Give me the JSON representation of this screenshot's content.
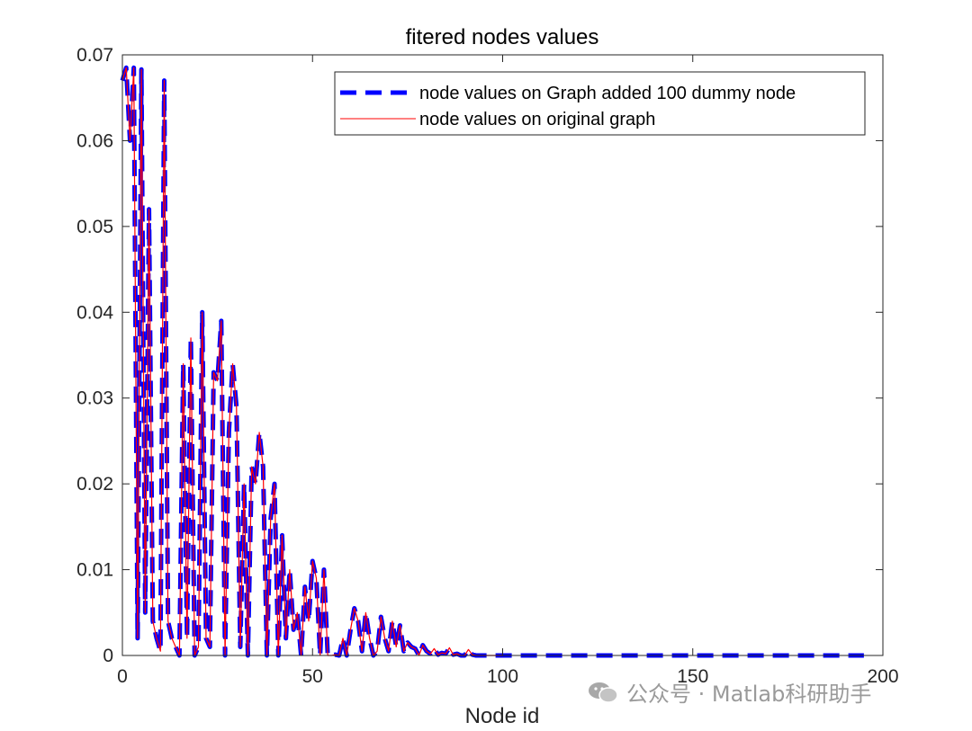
{
  "chart_data": {
    "type": "line",
    "title": "fitered nodes values",
    "xlabel": "Node id",
    "ylabel": "",
    "xlim": [
      0,
      200
    ],
    "ylim": [
      0,
      0.07
    ],
    "xticks": [
      0,
      50,
      100,
      150,
      200
    ],
    "xtick_labels": [
      "0",
      "50",
      "100",
      "150",
      "200"
    ],
    "yticks": [
      0,
      0.01,
      0.02,
      0.03,
      0.04,
      0.05,
      0.06,
      0.07
    ],
    "ytick_labels": [
      "0",
      "0.01",
      "0.02",
      "0.03",
      "0.04",
      "0.05",
      "0.06",
      "0.07"
    ],
    "legend_position": "top-right",
    "series": [
      {
        "name": "node values on Graph added 100 dummy node",
        "color": "#0000ff",
        "style": "dashed",
        "x": [
          0,
          1,
          2,
          3,
          4,
          5,
          6,
          7,
          8,
          9,
          10,
          11,
          12,
          13,
          14,
          15,
          16,
          17,
          18,
          19,
          20,
          21,
          22,
          23,
          24,
          25,
          26,
          27,
          28,
          29,
          30,
          31,
          32,
          33,
          34,
          35,
          36,
          37,
          38,
          39,
          40,
          41,
          42,
          43,
          44,
          45,
          46,
          47,
          48,
          49,
          50,
          51,
          52,
          53,
          54,
          55,
          56,
          57,
          58,
          59,
          60,
          61,
          62,
          63,
          64,
          65,
          66,
          67,
          68,
          69,
          70,
          71,
          72,
          73,
          74,
          75,
          76,
          77,
          78,
          79,
          80,
          81,
          82,
          83,
          84,
          85,
          86,
          87,
          88,
          89,
          90,
          91,
          92,
          93,
          94,
          95,
          96,
          97,
          98,
          99,
          100,
          101,
          102,
          103,
          104,
          105,
          106,
          107,
          108,
          109,
          110,
          120,
          130,
          140,
          150,
          160,
          170,
          180,
          190,
          195
        ],
        "values": [
          0.067,
          0.0685,
          0.06,
          0.0685,
          0.002,
          0.0683,
          0.005,
          0.052,
          0.004,
          0.002,
          0.0005,
          0.067,
          0.004,
          0.002,
          0.001,
          0.0,
          0.034,
          0.002,
          0.037,
          0.0,
          0.001,
          0.04,
          0.002,
          0.001,
          0.033,
          0.032,
          0.039,
          0.0,
          0.026,
          0.034,
          0.029,
          0.001,
          0.02,
          0.0,
          0.022,
          0.02,
          0.026,
          0.022,
          0.0,
          0.016,
          0.02,
          0.0,
          0.014,
          0.002,
          0.01,
          0.003,
          0.005,
          0.0,
          0.008,
          0.004,
          0.011,
          0.009,
          0.0,
          0.01,
          0.0,
          0.0,
          0.0001,
          0.0,
          0.002,
          0.0,
          0.003,
          0.0055,
          0.004,
          0.0005,
          0.005,
          0.002,
          0.0,
          0.0005,
          0.0045,
          0.002,
          0.0005,
          0.004,
          0.001,
          0.0035,
          0.0005,
          0.0015,
          0.001,
          0.0008,
          0.0,
          0.0012,
          0.0005,
          0.0002,
          0.0008,
          0.0001,
          0.0003,
          0.0002,
          0.0009,
          0.0001,
          0.0002,
          0.0,
          0.0,
          0.0007,
          0.0001,
          0.0,
          0.0,
          0.0,
          0.0,
          0.0,
          0.0,
          0.0,
          0.0,
          0.0,
          0.0,
          0.0,
          0.0,
          0.0,
          0.0,
          0.0,
          0.0,
          0.0,
          0.0,
          0.0,
          0.0,
          0.0,
          0.0,
          0.0,
          0.0,
          0.0,
          0.0,
          0.0
        ]
      },
      {
        "name": "node values on original graph",
        "color": "#ff0000",
        "style": "solid",
        "x": [
          0,
          1,
          2,
          3,
          4,
          5,
          6,
          7,
          8,
          9,
          10,
          11,
          12,
          13,
          14,
          15,
          16,
          17,
          18,
          19,
          20,
          21,
          22,
          23,
          24,
          25,
          26,
          27,
          28,
          29,
          30,
          31,
          32,
          33,
          34,
          35,
          36,
          37,
          38,
          39,
          40,
          41,
          42,
          43,
          44,
          45,
          46,
          47,
          48,
          49,
          50,
          51,
          52,
          53,
          54,
          55,
          56,
          57,
          58,
          59,
          60,
          61,
          62,
          63,
          64,
          65,
          66,
          67,
          68,
          69,
          70,
          71,
          72,
          73,
          74,
          75,
          76,
          77,
          78,
          79,
          80,
          81,
          82,
          83,
          84,
          85,
          86,
          87,
          88,
          89,
          90,
          91,
          92,
          93,
          94,
          95,
          96,
          97,
          98,
          99,
          100
        ],
        "values": [
          0.067,
          0.0685,
          0.06,
          0.0685,
          0.002,
          0.0683,
          0.005,
          0.052,
          0.004,
          0.002,
          0.0005,
          0.067,
          0.004,
          0.002,
          0.001,
          0.0,
          0.034,
          0.002,
          0.037,
          0.0,
          0.001,
          0.04,
          0.002,
          0.001,
          0.033,
          0.032,
          0.039,
          0.0,
          0.026,
          0.034,
          0.029,
          0.001,
          0.02,
          0.0,
          0.022,
          0.02,
          0.026,
          0.022,
          0.0,
          0.016,
          0.02,
          0.0,
          0.014,
          0.002,
          0.01,
          0.003,
          0.005,
          0.0,
          0.008,
          0.004,
          0.011,
          0.009,
          0.0,
          0.01,
          0.0,
          0.0,
          0.0001,
          0.0,
          0.002,
          0.0,
          0.003,
          0.0055,
          0.004,
          0.0005,
          0.005,
          0.002,
          0.0,
          0.0005,
          0.0045,
          0.002,
          0.0005,
          0.004,
          0.001,
          0.0035,
          0.0005,
          0.0015,
          0.001,
          0.0008,
          0.0,
          0.0012,
          0.0005,
          0.0002,
          0.0008,
          0.0001,
          0.0003,
          0.0002,
          0.0009,
          0.0001,
          0.0002,
          0.0,
          0.0,
          0.0007,
          0.0001,
          0.0,
          0.0,
          0.0,
          0.0,
          0.0,
          0.0,
          0.0,
          0.0
        ]
      }
    ]
  },
  "watermark": {
    "text": "公众号 · Matlab科研助手"
  }
}
